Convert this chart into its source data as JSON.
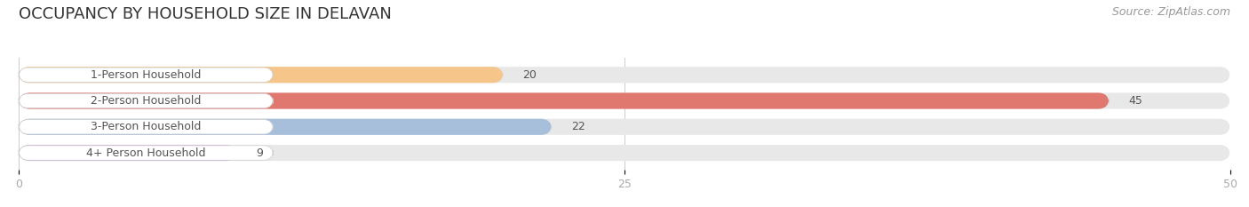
{
  "title": "OCCUPANCY BY HOUSEHOLD SIZE IN DELAVAN",
  "source": "Source: ZipAtlas.com",
  "categories": [
    "1-Person Household",
    "2-Person Household",
    "3-Person Household",
    "4+ Person Household"
  ],
  "values": [
    20,
    45,
    22,
    9
  ],
  "bar_colors": [
    "#f5c58a",
    "#e07870",
    "#a8bfdc",
    "#c9afd0"
  ],
  "bar_bg_color": "#e8e8e8",
  "xlim": [
    0,
    50
  ],
  "xticks": [
    0,
    25,
    50
  ],
  "title_fontsize": 13,
  "source_fontsize": 9,
  "label_fontsize": 9,
  "value_fontsize": 9,
  "bar_height": 0.62,
  "background_color": "#ffffff",
  "label_box_color": "#ffffff",
  "label_text_color": "#555555",
  "value_text_color_inside": "#ffffff",
  "value_text_color_outside": "#555555",
  "grid_color": "#cccccc",
  "tick_color": "#aaaaaa"
}
